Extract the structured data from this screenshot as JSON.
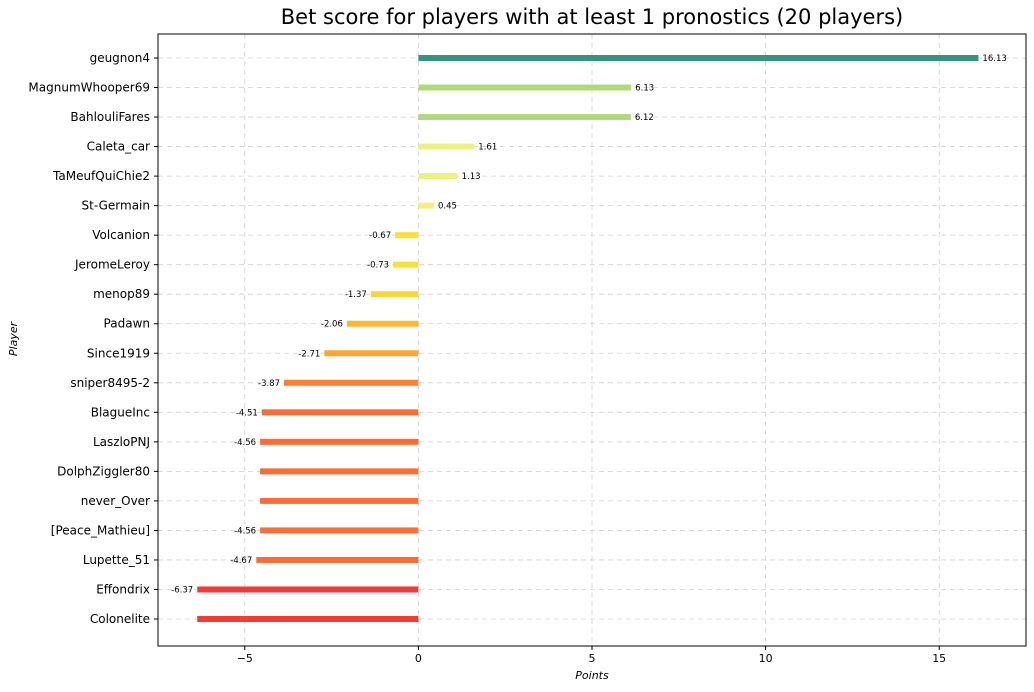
{
  "chart_data": {
    "type": "bar",
    "orientation": "horizontal",
    "title": "Bet score for players with at least 1 pronostics (20 players)",
    "xlabel": "Points",
    "ylabel": "Player",
    "xlim": [
      -7.5,
      17.5
    ],
    "xticks": [
      -5,
      0,
      5,
      10,
      15
    ],
    "xtick_labels": [
      "−5",
      "0",
      "5",
      "10",
      "15"
    ],
    "grid": true,
    "legend": "none",
    "categories": [
      "geugnon4",
      "MagnumWhooper69",
      "BahlouliFares",
      "Caleta_car",
      "TaMeufQuiChie2",
      "St-Germain",
      "Volcanion",
      "JeromeLeroy",
      "menop89",
      "Padawn",
      "Since1919",
      "sniper8495-2",
      "BlagueInc",
      "LaszloPNJ",
      "DolphZiggler80",
      "never_Over",
      "[Peace_Mathieu]",
      "Lupette_51",
      "Effondrix",
      "Colonelite"
    ],
    "values": [
      16.13,
      6.13,
      6.12,
      1.61,
      1.13,
      0.45,
      -0.67,
      -0.73,
      -1.37,
      -2.06,
      -2.71,
      -3.87,
      -4.51,
      -4.56,
      -4.56,
      -4.56,
      -4.56,
      -4.67,
      -6.37,
      -6.37
    ],
    "data_labels": [
      "16.13",
      "6.13",
      "6.12",
      "1.61",
      "1.13",
      "0.45",
      "-0.67",
      "-0.73",
      "-1.37",
      "-2.06",
      "-2.71",
      "-3.87",
      "-4.51",
      "-4.56",
      "",
      "",
      "-4.56",
      "-4.67",
      "-6.37",
      ""
    ],
    "colors": [
      "#35937f",
      "#b1d97a",
      "#b1d97a",
      "#ecf27f",
      "#ecf27f",
      "#f5f07a",
      "#f9e237",
      "#f9e237",
      "#f9d737",
      "#fbb735",
      "#fca733",
      "#fd7f35",
      "#fd6c34",
      "#fd6c34",
      "#fd6c34",
      "#fd6c34",
      "#fd6c34",
      "#fd6c34",
      "#f33a36",
      "#f33a36"
    ]
  }
}
